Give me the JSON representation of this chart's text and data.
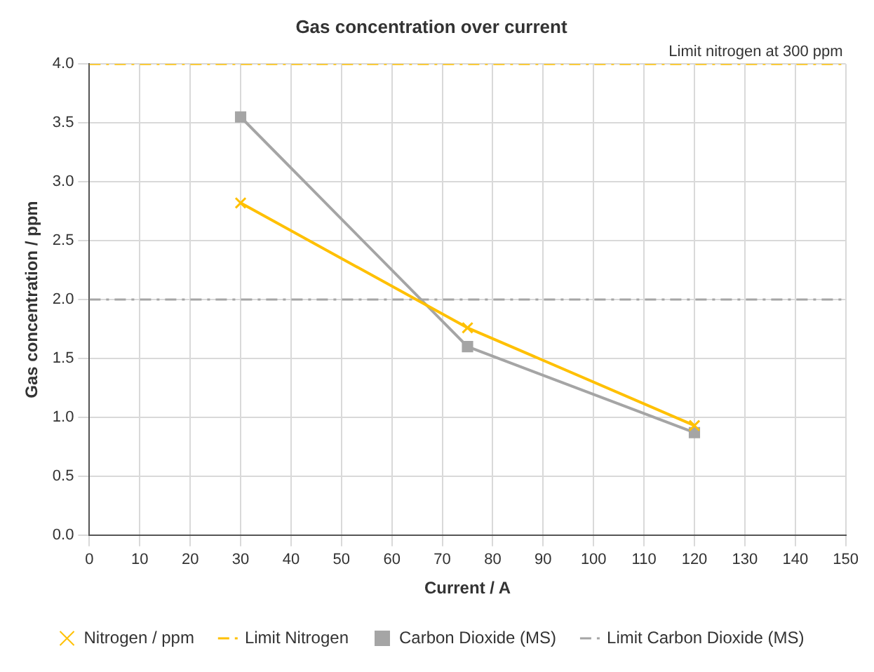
{
  "chart_data": {
    "type": "line",
    "title": "Gas concentration over current",
    "xlabel": "Current / A",
    "ylabel": "Gas concentration / ppm",
    "xlim": [
      0,
      150
    ],
    "xticks": [
      0,
      10,
      20,
      30,
      40,
      50,
      60,
      70,
      80,
      90,
      100,
      110,
      120,
      130,
      140,
      150
    ],
    "ylim": [
      0,
      4
    ],
    "yticks": [
      {
        "value": 0,
        "label": "0.0"
      },
      {
        "value": 0.5,
        "label": "0.5"
      },
      {
        "value": 1,
        "label": "1.0"
      },
      {
        "value": 1.5,
        "label": "1.5"
      },
      {
        "value": 2,
        "label": "2.0"
      },
      {
        "value": 2.5,
        "label": "2.5"
      },
      {
        "value": 3,
        "label": "3.0"
      },
      {
        "value": 3.5,
        "label": "3.5"
      },
      {
        "value": 4,
        "label": "4.0"
      }
    ],
    "grid": true,
    "legend": "bottom",
    "series": [
      {
        "name": "Nitrogen / ppm",
        "color": "#ffc000",
        "x": [
          30,
          75,
          120
        ],
        "values": [
          2.82,
          1.76,
          0.93
        ],
        "marker": "cross",
        "line_style": "solid"
      },
      {
        "name": "Limit Nitrogen",
        "color": "#ffc000",
        "x": [
          0,
          150
        ],
        "values": [
          4,
          4
        ],
        "marker": "none",
        "line_style": "dashed"
      },
      {
        "name": "Carbon Dioxide (MS)",
        "color": "#a5a5a5",
        "x": [
          30,
          75,
          120
        ],
        "values": [
          3.55,
          1.6,
          0.87
        ],
        "marker": "square",
        "line_style": "solid"
      },
      {
        "name": "Limit Carbon Dioxide (MS)",
        "color": "#a5a5a5",
        "x": [
          0,
          150
        ],
        "values": [
          2,
          2
        ],
        "marker": "none",
        "line_style": "dashed"
      }
    ],
    "annotations": [
      {
        "text": "Limit nitrogen at 300 ppm",
        "x": 150,
        "y": 4
      }
    ]
  }
}
